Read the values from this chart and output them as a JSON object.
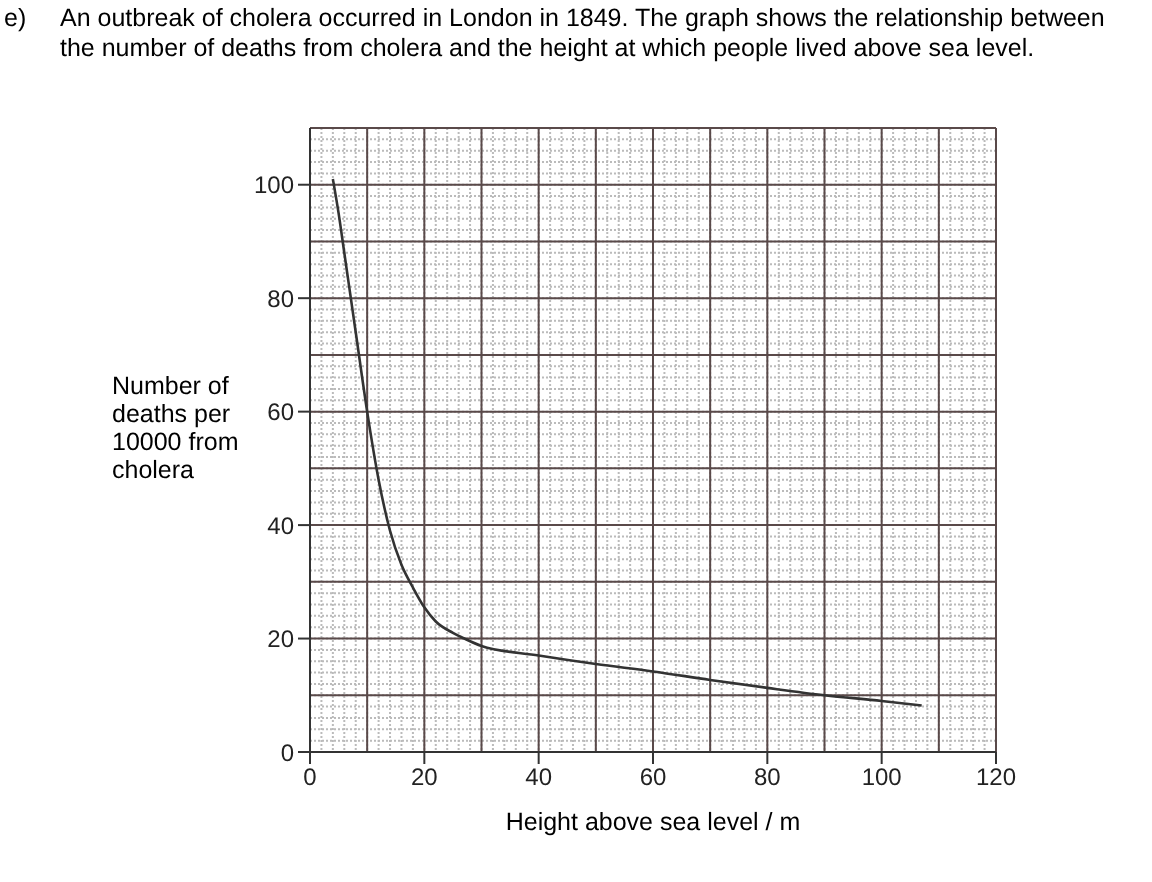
{
  "chart_data": {
    "type": "line",
    "title": "An outbreak of cholera occurred in London in 1849. The graph shows the relationship between the number of deaths from cholera and the height at which people lived above sea level.",
    "annotations": [
      "e)"
    ],
    "xlabel": "Height above sea level / m",
    "ylabel": "Number of deaths per 10000 from cholera",
    "x": [
      4,
      5,
      6,
      8,
      10,
      12,
      14,
      16,
      18,
      20,
      22,
      25,
      27,
      30,
      40,
      50,
      60,
      70,
      80,
      90,
      100,
      107
    ],
    "series": [
      {
        "color": "#333333",
        "values": [
          101,
          95,
          88,
          74,
          60,
          48,
          39,
          33,
          29,
          25.5,
          23,
          21,
          20,
          18.7,
          17,
          15.5,
          14.2,
          12.7,
          11.3,
          10,
          9,
          8.2
        ]
      }
    ],
    "xlim": [
      0,
      120
    ],
    "xticks": [
      0,
      20,
      40,
      60,
      80,
      100,
      120
    ],
    "ylim": [
      0,
      110
    ],
    "yticks": [
      0,
      20,
      40,
      60,
      80,
      100
    ],
    "grid": true,
    "marker": "none",
    "line_style": "solid",
    "legend": false
  }
}
